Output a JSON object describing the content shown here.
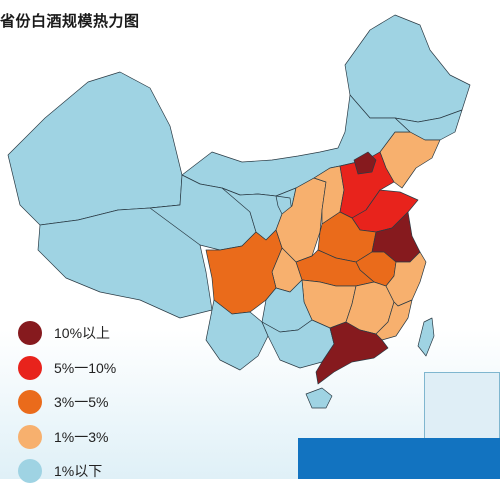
{
  "title": "省份白酒规模热力图",
  "legend": [
    {
      "label": "10%以上",
      "color": "#861a1e",
      "level": "10%以上"
    },
    {
      "label": "5%一10%",
      "color": "#e8231c",
      "level": "5%一10%"
    },
    {
      "label": "3%一5%",
      "color": "#ea6b1b",
      "level": "3%一5%"
    },
    {
      "label": "1%一3%",
      "color": "#f7b06e",
      "level": "1%一3%"
    },
    {
      "label": "1%以下",
      "color": "#9fd3e3",
      "level": "1%以下"
    }
  ],
  "colors": {
    "base": "#9fd3e3",
    "border": "#2a3a44",
    "sea_bar": "#1273c0"
  },
  "regions": [
    {
      "name": "Xinjiang",
      "level": "1%以下"
    },
    {
      "name": "Xizang",
      "level": "1%以下"
    },
    {
      "name": "Qinghai",
      "level": "1%以下"
    },
    {
      "name": "Gansu",
      "level": "1%以下"
    },
    {
      "name": "Inner Mongolia",
      "level": "1%以下"
    },
    {
      "name": "Heilongjiang",
      "level": "1%以下"
    },
    {
      "name": "Jilin",
      "level": "1%以下"
    },
    {
      "name": "Liaoning",
      "level": "1%一3%"
    },
    {
      "name": "Beijing",
      "level": "10%以上"
    },
    {
      "name": "Hebei",
      "level": "5%一10%"
    },
    {
      "name": "Shandong",
      "level": "5%一10%"
    },
    {
      "name": "Jiangsu",
      "level": "10%以上"
    },
    {
      "name": "Anhui",
      "level": "3%一5%"
    },
    {
      "name": "Henan",
      "level": "3%一5%"
    },
    {
      "name": "Shanxi",
      "level": "1%一3%"
    },
    {
      "name": "Shaanxi",
      "level": "1%一3%"
    },
    {
      "name": "Hubei",
      "level": "3%一5%"
    },
    {
      "name": "Sichuan",
      "level": "3%一5%"
    },
    {
      "name": "Chongqing",
      "level": "1%一3%"
    },
    {
      "name": "Hunan",
      "level": "1%一3%"
    },
    {
      "name": "Jiangxi",
      "level": "1%一3%"
    },
    {
      "name": "Zhejiang",
      "level": "1%一3%"
    },
    {
      "name": "Fujian",
      "level": "1%一3%"
    },
    {
      "name": "Guangdong",
      "level": "10%以上"
    },
    {
      "name": "Guangxi",
      "level": "1%以下"
    },
    {
      "name": "Guizhou",
      "level": "1%以下"
    },
    {
      "name": "Yunnan",
      "level": "1%以下"
    },
    {
      "name": "Hainan",
      "level": "1%以下"
    },
    {
      "name": "Taiwan",
      "level": "1%以下"
    },
    {
      "name": "Ningxia",
      "level": "1%以下"
    }
  ]
}
